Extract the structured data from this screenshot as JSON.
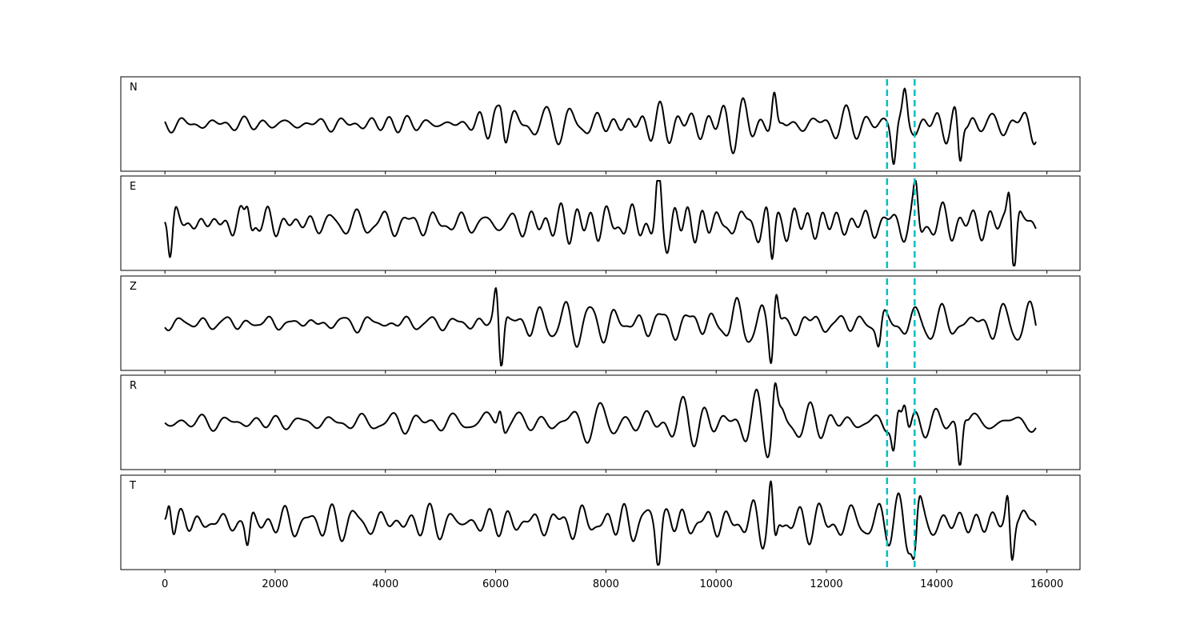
{
  "chart_data": {
    "type": "line",
    "title": "",
    "xlabel": "",
    "ylabel": "",
    "xlim": [
      -800,
      16600
    ],
    "x_ticks": [
      "0",
      "2000",
      "4000",
      "6000",
      "8000",
      "10000",
      "12000",
      "14000",
      "16000"
    ],
    "x_tick_values": [
      0,
      2000,
      4000,
      6000,
      8000,
      10000,
      12000,
      14000,
      16000
    ],
    "y_ticks_shown": false,
    "n_samples": 15800,
    "trace_color": "#000000",
    "marker_color": "#00c0c0",
    "vertical_markers": [
      13100,
      13600
    ],
    "series": [
      {
        "name": "N",
        "sampled_x": [
          0,
          500,
          1000,
          1500,
          2000,
          2500,
          3000,
          3500,
          4000,
          4500,
          5000,
          5500,
          6000,
          6100,
          6500,
          7000,
          7500,
          8000,
          8500,
          9000,
          9500,
          10000,
          10500,
          11000,
          11100,
          11500,
          12000,
          12500,
          13000,
          13100,
          13200,
          13300,
          13400,
          13600,
          14000,
          14400,
          14500,
          15000,
          15500,
          15800
        ],
        "sampled_y": [
          0.0,
          0.05,
          -0.08,
          0.1,
          0.02,
          -0.1,
          0.12,
          -0.05,
          0.08,
          0.15,
          -0.1,
          0.2,
          -0.4,
          0.45,
          -0.3,
          0.35,
          -0.25,
          0.4,
          0.3,
          -0.45,
          0.5,
          -0.35,
          0.4,
          -0.6,
          0.7,
          -0.4,
          0.45,
          -0.3,
          0.25,
          0.05,
          -0.8,
          0.6,
          0.0,
          0.2,
          -0.45,
          -1.0,
          0.3,
          -0.4,
          0.35,
          -0.1
        ],
        "envelope": [
          [
            0,
            0.18
          ],
          [
            5500,
            0.2
          ],
          [
            5800,
            0.42
          ],
          [
            11000,
            0.55
          ],
          [
            12500,
            0.35
          ],
          [
            13200,
            0.3
          ],
          [
            14400,
            0.45
          ],
          [
            15800,
            0.4
          ]
        ],
        "events": [
          [
            6100,
            0.4
          ],
          [
            11050,
            0.7
          ],
          [
            13220,
            -0.75
          ],
          [
            13420,
            0.55
          ],
          [
            14420,
            -0.95
          ]
        ]
      },
      {
        "name": "E",
        "sampled_x": [
          0,
          50,
          100,
          500,
          1000,
          1500,
          2000,
          2500,
          3000,
          3500,
          4000,
          4500,
          5000,
          5500,
          6000,
          6500,
          7000,
          7500,
          8000,
          8500,
          9000,
          9500,
          10000,
          10500,
          11000,
          11500,
          12000,
          12500,
          13000,
          13500,
          13600,
          14000,
          14500,
          15000,
          15200,
          15300,
          15500,
          15800
        ],
        "sampled_y": [
          0.1,
          0.5,
          -0.6,
          0.3,
          -0.35,
          0.5,
          -0.3,
          0.35,
          -0.25,
          0.3,
          -0.3,
          0.4,
          -0.3,
          0.35,
          -0.4,
          0.45,
          -0.4,
          0.4,
          -0.45,
          0.35,
          0.7,
          -0.4,
          0.45,
          -0.5,
          -0.8,
          0.6,
          -0.5,
          0.55,
          -0.4,
          0.5,
          0.7,
          -0.55,
          0.5,
          -0.6,
          0.85,
          -0.8,
          0.5,
          -0.2
        ],
        "envelope": [
          [
            0,
            0.35
          ],
          [
            5500,
            0.35
          ],
          [
            6000,
            0.45
          ],
          [
            9000,
            0.55
          ],
          [
            11000,
            0.6
          ],
          [
            15800,
            0.65
          ]
        ],
        "events": [
          [
            40,
            0.45
          ],
          [
            90,
            -0.6
          ],
          [
            1500,
            0.55
          ],
          [
            8950,
            0.75
          ],
          [
            11010,
            -0.85
          ],
          [
            13620,
            0.7
          ],
          [
            15320,
            0.9
          ],
          [
            15400,
            -0.85
          ]
        ]
      },
      {
        "name": "Z",
        "sampled_x": [
          0,
          500,
          1000,
          1500,
          2000,
          2500,
          3000,
          3500,
          4000,
          4500,
          5000,
          5500,
          5900,
          6000,
          6100,
          6500,
          7000,
          7500,
          8000,
          8500,
          9000,
          9500,
          10000,
          10500,
          11000,
          11100,
          11500,
          12000,
          12500,
          13000,
          13500,
          14000,
          14500,
          15000,
          15500,
          15800
        ],
        "sampled_y": [
          0.0,
          0.1,
          -0.1,
          0.08,
          0.05,
          -0.1,
          0.12,
          -0.08,
          0.1,
          -0.12,
          0.15,
          -0.2,
          0.3,
          0.85,
          -0.75,
          0.35,
          -0.4,
          0.4,
          -0.35,
          0.45,
          -0.5,
          0.4,
          -0.3,
          0.35,
          -0.7,
          0.6,
          -0.3,
          0.25,
          -0.2,
          0.3,
          -0.35,
          0.4,
          -0.4,
          0.45,
          -0.35,
          0.2
        ],
        "envelope": [
          [
            0,
            0.15
          ],
          [
            5000,
            0.2
          ],
          [
            5500,
            0.3
          ],
          [
            6500,
            0.45
          ],
          [
            10500,
            0.45
          ],
          [
            11500,
            0.35
          ],
          [
            12500,
            0.25
          ],
          [
            13500,
            0.35
          ],
          [
            15800,
            0.45
          ]
        ],
        "events": [
          [
            6010,
            0.85
          ],
          [
            6100,
            -0.8
          ],
          [
            11000,
            -0.7
          ],
          [
            11080,
            0.6
          ],
          [
            12950,
            -0.5
          ]
        ]
      },
      {
        "name": "R",
        "sampled_x": [
          0,
          500,
          1000,
          1500,
          2000,
          2500,
          3000,
          3500,
          4000,
          4500,
          5000,
          5500,
          6000,
          6100,
          6500,
          7000,
          7500,
          8000,
          8500,
          9000,
          9500,
          10000,
          10500,
          11000,
          11100,
          11500,
          12000,
          12500,
          13000,
          13100,
          13200,
          13400,
          13600,
          14000,
          14400,
          14500,
          15000,
          15500,
          15800
        ],
        "sampled_y": [
          0.0,
          0.1,
          -0.1,
          0.12,
          -0.08,
          0.1,
          -0.12,
          0.1,
          0.05,
          0.15,
          -0.15,
          0.25,
          -0.45,
          0.5,
          -0.3,
          0.35,
          -0.3,
          0.4,
          0.35,
          -0.4,
          0.45,
          -0.35,
          0.4,
          -0.55,
          0.75,
          -0.4,
          0.45,
          -0.3,
          0.25,
          0.1,
          -0.75,
          0.55,
          0.1,
          -0.45,
          -1.0,
          0.3,
          -0.45,
          0.35,
          -0.1
        ],
        "envelope": [
          [
            0,
            0.2
          ],
          [
            5500,
            0.22
          ],
          [
            5800,
            0.42
          ],
          [
            11000,
            0.55
          ],
          [
            12500,
            0.35
          ],
          [
            13200,
            0.3
          ],
          [
            14400,
            0.45
          ],
          [
            15800,
            0.4
          ]
        ],
        "events": [
          [
            6080,
            0.45
          ],
          [
            11060,
            0.75
          ],
          [
            13220,
            -0.75
          ],
          [
            13420,
            0.55
          ],
          [
            14420,
            -0.95
          ]
        ]
      },
      {
        "name": "T",
        "sampled_x": [
          0,
          50,
          100,
          500,
          1000,
          1500,
          2000,
          2500,
          3000,
          3500,
          4000,
          4500,
          5000,
          5500,
          6000,
          6500,
          7000,
          7500,
          8000,
          8500,
          9000,
          9500,
          10000,
          10500,
          11000,
          11100,
          11500,
          12000,
          12500,
          13000,
          13500,
          13600,
          14000,
          14500,
          15000,
          15200,
          15300,
          15500,
          15800
        ],
        "sampled_y": [
          0.0,
          -0.45,
          0.6,
          0.3,
          -0.4,
          0.45,
          -0.35,
          0.4,
          -0.3,
          0.35,
          -0.35,
          0.4,
          -0.35,
          0.4,
          -0.45,
          0.5,
          -0.5,
          0.45,
          -0.5,
          0.45,
          -0.7,
          0.5,
          -0.45,
          0.55,
          0.8,
          -0.6,
          0.5,
          -0.6,
          0.55,
          -0.5,
          0.6,
          -0.8,
          0.5,
          -0.55,
          0.55,
          0.85,
          -0.85,
          0.5,
          0.2
        ],
        "envelope": [
          [
            0,
            0.35
          ],
          [
            5500,
            0.4
          ],
          [
            8000,
            0.5
          ],
          [
            11000,
            0.6
          ],
          [
            15800,
            0.6
          ]
        ],
        "events": [
          [
            80,
            0.65
          ],
          [
            1500,
            -0.55
          ],
          [
            8950,
            -0.7
          ],
          [
            11000,
            0.8
          ],
          [
            11050,
            -0.65
          ],
          [
            13600,
            -0.8
          ],
          [
            15300,
            0.85
          ],
          [
            15350,
            -0.85
          ]
        ]
      }
    ]
  }
}
